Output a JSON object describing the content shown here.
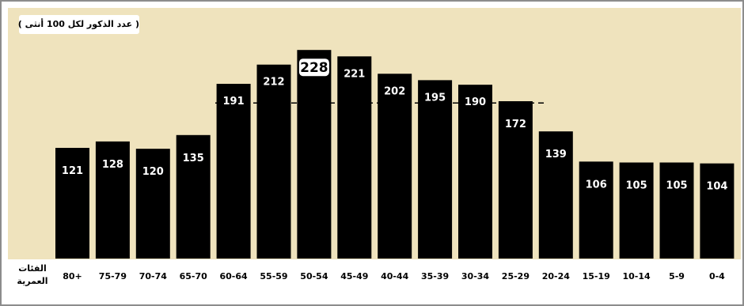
{
  "chart_data": {
    "type": "bar",
    "unit_label": "( عدد الذكور لكل 100 أنثى )",
    "xlabel_lines": [
      "الفئات",
      "العمرية"
    ],
    "categories": [
      "80+",
      "75-79",
      "70-74",
      "65-70",
      "60-64",
      "55-59",
      "50-54",
      "45-49",
      "40-44",
      "35-39",
      "30-34",
      "25-29",
      "20-24",
      "15-19",
      "10-14",
      "5-9",
      "0-4"
    ],
    "values": [
      121,
      128,
      120,
      135,
      191,
      212,
      228,
      221,
      202,
      195,
      190,
      172,
      139,
      106,
      105,
      105,
      104
    ],
    "highlight_category": "50-54",
    "reference_line": 170,
    "ylim": [
      0,
      250
    ],
    "grid": false,
    "colors": {
      "bar": "#000000",
      "label": "#ffffff",
      "background": "#efe3bd",
      "highlight_box": "#ffffff"
    }
  }
}
